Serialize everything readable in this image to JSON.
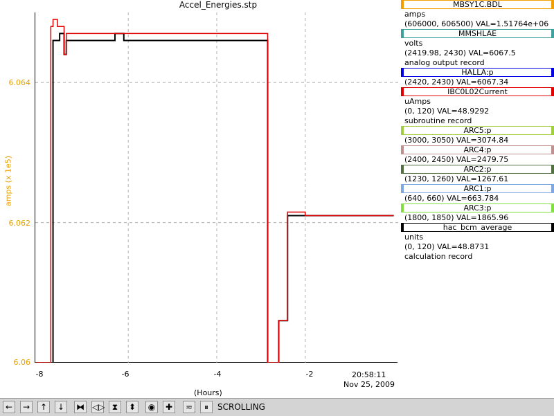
{
  "window": {
    "title": "Accel_Energies.stp"
  },
  "colors": {
    "accent": "#e8a000",
    "grid": "#b0b0b0"
  },
  "chart_data": {
    "type": "line",
    "title": "Accel_Energies.stp",
    "xlabel": "(Hours)",
    "ylabel": "amps (x 1e5)",
    "xlim": [
      -8.1,
      0.1
    ],
    "ylim": [
      6.06,
      6.065
    ],
    "x_ticks": [
      "-8",
      "-6",
      "-4",
      "-2"
    ],
    "y_ticks": [
      "6.06",
      "6.062",
      "6.064"
    ],
    "x_end_label": "20:58:11",
    "date_label": "Nov 25, 2009",
    "grid": true,
    "series": [
      {
        "name": "MBSY1C.BDL",
        "color": "#000000",
        "x": [
          -8.1,
          -7.85,
          -7.7,
          -7.65,
          -7.55,
          -7.45,
          -7.4,
          -7.2,
          -7.0,
          -6.9,
          -6.7,
          -6.5,
          -6.3,
          -6.1,
          -5.9,
          -5.7,
          -5.5,
          -5.3,
          -5.1,
          -4.9,
          -4.7,
          -4.5,
          -4.3,
          -4.1,
          -3.9,
          -3.7,
          -3.5,
          -3.3,
          -3.0,
          -2.85,
          -2.6,
          -2.4,
          -2.2,
          -2.0,
          -1.8,
          -1.6,
          -1.4,
          -1.2,
          -1.0,
          -0.8,
          -0.6,
          -0.4,
          -0.2,
          0.0
        ],
        "y": [
          6.06,
          6.06,
          6.0646,
          6.0646,
          6.0647,
          6.0644,
          6.0646,
          6.0646,
          6.0646,
          6.0646,
          6.0646,
          6.0646,
          6.0647,
          6.0646,
          6.0646,
          6.0646,
          6.0646,
          6.0646,
          6.0646,
          6.0646,
          6.0646,
          6.0646,
          6.0646,
          6.0646,
          6.0646,
          6.0646,
          6.0646,
          6.0646,
          6.0646,
          6.06,
          6.0606,
          6.0621,
          6.0621,
          6.0621,
          6.0621,
          6.0621,
          6.0621,
          6.0621,
          6.0621,
          6.0621,
          6.0621,
          6.0621,
          6.0621,
          6.0621
        ]
      },
      {
        "name": "IBC0L02Current",
        "color": "#e00000",
        "x": [
          -8.1,
          -7.85,
          -7.75,
          -7.7,
          -7.6,
          -7.45,
          -7.4,
          -7.2,
          -7.0,
          -6.9,
          -6.7,
          -6.5,
          -6.3,
          -6.1,
          -5.9,
          -5.7,
          -5.5,
          -5.3,
          -5.1,
          -4.9,
          -4.7,
          -4.5,
          -4.3,
          -4.1,
          -3.9,
          -3.7,
          -3.5,
          -3.3,
          -3.0,
          -2.85,
          -2.6,
          -2.4,
          -2.2,
          -2.0,
          -1.8,
          -1.6,
          -1.4,
          -1.2,
          -1.0,
          -0.8,
          -0.6,
          -0.4,
          -0.2,
          0.0
        ],
        "y": [
          6.06,
          6.06,
          6.0648,
          6.0649,
          6.0648,
          6.0644,
          6.0647,
          6.0647,
          6.0647,
          6.0647,
          6.0647,
          6.0647,
          6.0647,
          6.0647,
          6.0647,
          6.0647,
          6.0647,
          6.0647,
          6.0647,
          6.0647,
          6.0647,
          6.0647,
          6.0647,
          6.0647,
          6.0647,
          6.0647,
          6.0647,
          6.0647,
          6.0647,
          6.06,
          6.0606,
          6.06215,
          6.06215,
          6.0621,
          6.0621,
          6.0621,
          6.0621,
          6.0621,
          6.0621,
          6.0621,
          6.0621,
          6.0621,
          6.0621,
          6.0621
        ]
      }
    ]
  },
  "legend": [
    {
      "name": "MBSY1C.BDL",
      "color": "#f0a000",
      "lines": [
        "amps",
        "(606000, 606500)  VAL=1.51764e+06"
      ]
    },
    {
      "name": "MMSHLAE",
      "color": "#40a0a0",
      "lines": [
        "volts",
        "(2419.98, 2430) VAL=6067.5",
        "analog output record"
      ]
    },
    {
      "name": "HALLA:p",
      "color": "#0000e0",
      "lines": [
        "(2420, 2430) VAL=6067.34"
      ]
    },
    {
      "name": "IBC0L02Current",
      "color": "#e00000",
      "lines": [
        "uAmps",
        "(0, 120) VAL=48.9292",
        "subroutine record"
      ]
    },
    {
      "name": "ARC5:p",
      "color": "#a0d040",
      "lines": [
        "(3000, 3050) VAL=3074.84"
      ]
    },
    {
      "name": "ARC4:p",
      "color": "#c09090",
      "lines": [
        "(2400, 2450) VAL=2479.75"
      ]
    },
    {
      "name": "ARC2:p",
      "color": "#507040",
      "lines": [
        "(1230, 1260) VAL=1267.61"
      ]
    },
    {
      "name": "ARC1:p",
      "color": "#80a8e0",
      "lines": [
        "(640, 660) VAL=663.784"
      ]
    },
    {
      "name": "ARC3:p",
      "color": "#80e040",
      "lines": [
        "(1800, 1850) VAL=1865.96"
      ]
    },
    {
      "name": "hac_bcm_average",
      "color": "#000000",
      "lines": [
        "units",
        "(0, 120) VAL=48.8731",
        "calculation record"
      ]
    }
  ],
  "toolbar": {
    "status": "SCROLLING",
    "buttons": [
      {
        "icon": "pan-left-icon",
        "glyph": "←"
      },
      {
        "icon": "pan-right-icon",
        "glyph": "→"
      },
      {
        "icon": "pan-up-icon",
        "glyph": "↑"
      },
      {
        "icon": "pan-down-icon",
        "glyph": "↓"
      },
      {
        "icon": "zoom-in-x-icon",
        "glyph": "⧓"
      },
      {
        "icon": "zoom-out-x-icon",
        "glyph": "◁▷"
      },
      {
        "icon": "zoom-in-y-icon",
        "glyph": "⧗"
      },
      {
        "icon": "zoom-out-y-icon",
        "glyph": "⬍"
      },
      {
        "icon": "record-icon",
        "glyph": "◉"
      },
      {
        "icon": "crosshair-icon",
        "glyph": "✚"
      },
      {
        "icon": "autoscale-icon",
        "glyph": "≂"
      },
      {
        "icon": "pause-icon",
        "glyph": "⏸"
      }
    ]
  }
}
